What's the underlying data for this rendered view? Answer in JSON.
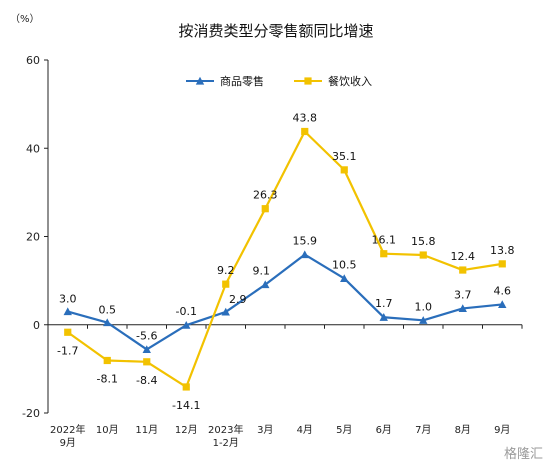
{
  "unit_label": "（%）",
  "watermark": "格隆汇",
  "colors": {
    "goods": "#2a6ebb",
    "catering": "#f2c200",
    "axis": "#222222",
    "text": "#111111"
  },
  "chart_data": {
    "type": "line",
    "title": "按消费类型分零售额同比增速",
    "ylim": [
      -20,
      60
    ],
    "yticks": [
      -20,
      0,
      20,
      40,
      60
    ],
    "categories": [
      [
        "2022年",
        "9月"
      ],
      [
        "10月"
      ],
      [
        "11月"
      ],
      [
        "12月"
      ],
      [
        "2023年",
        "1-2月"
      ],
      [
        "3月"
      ],
      [
        "4月"
      ],
      [
        "5月"
      ],
      [
        "6月"
      ],
      [
        "7月"
      ],
      [
        "8月"
      ],
      [
        "9月"
      ]
    ],
    "series": [
      {
        "name": "商品零售",
        "key": "goods",
        "marker": "triangle",
        "values": [
          3.0,
          0.5,
          -5.6,
          -0.1,
          2.9,
          9.1,
          15.9,
          10.5,
          1.7,
          1.0,
          3.7,
          4.6
        ],
        "labels": [
          "3.0",
          "0.5",
          "-5.6",
          "-0.1",
          "2.9",
          "9.1",
          "15.9",
          "10.5",
          "1.7",
          "1.0",
          "3.7",
          "4.6"
        ]
      },
      {
        "name": "餐饮收入",
        "key": "catering",
        "marker": "square",
        "values": [
          -1.7,
          -8.1,
          -8.4,
          -14.1,
          9.2,
          26.3,
          43.8,
          35.1,
          16.1,
          15.8,
          12.4,
          13.8
        ],
        "labels": [
          "-1.7",
          "-8.1",
          "-8.4",
          "-14.1",
          "9.2",
          "26.3",
          "43.8",
          "35.1",
          "16.1",
          "15.8",
          "12.4",
          "13.8"
        ]
      }
    ],
    "legend": "top-center",
    "grid": false
  }
}
